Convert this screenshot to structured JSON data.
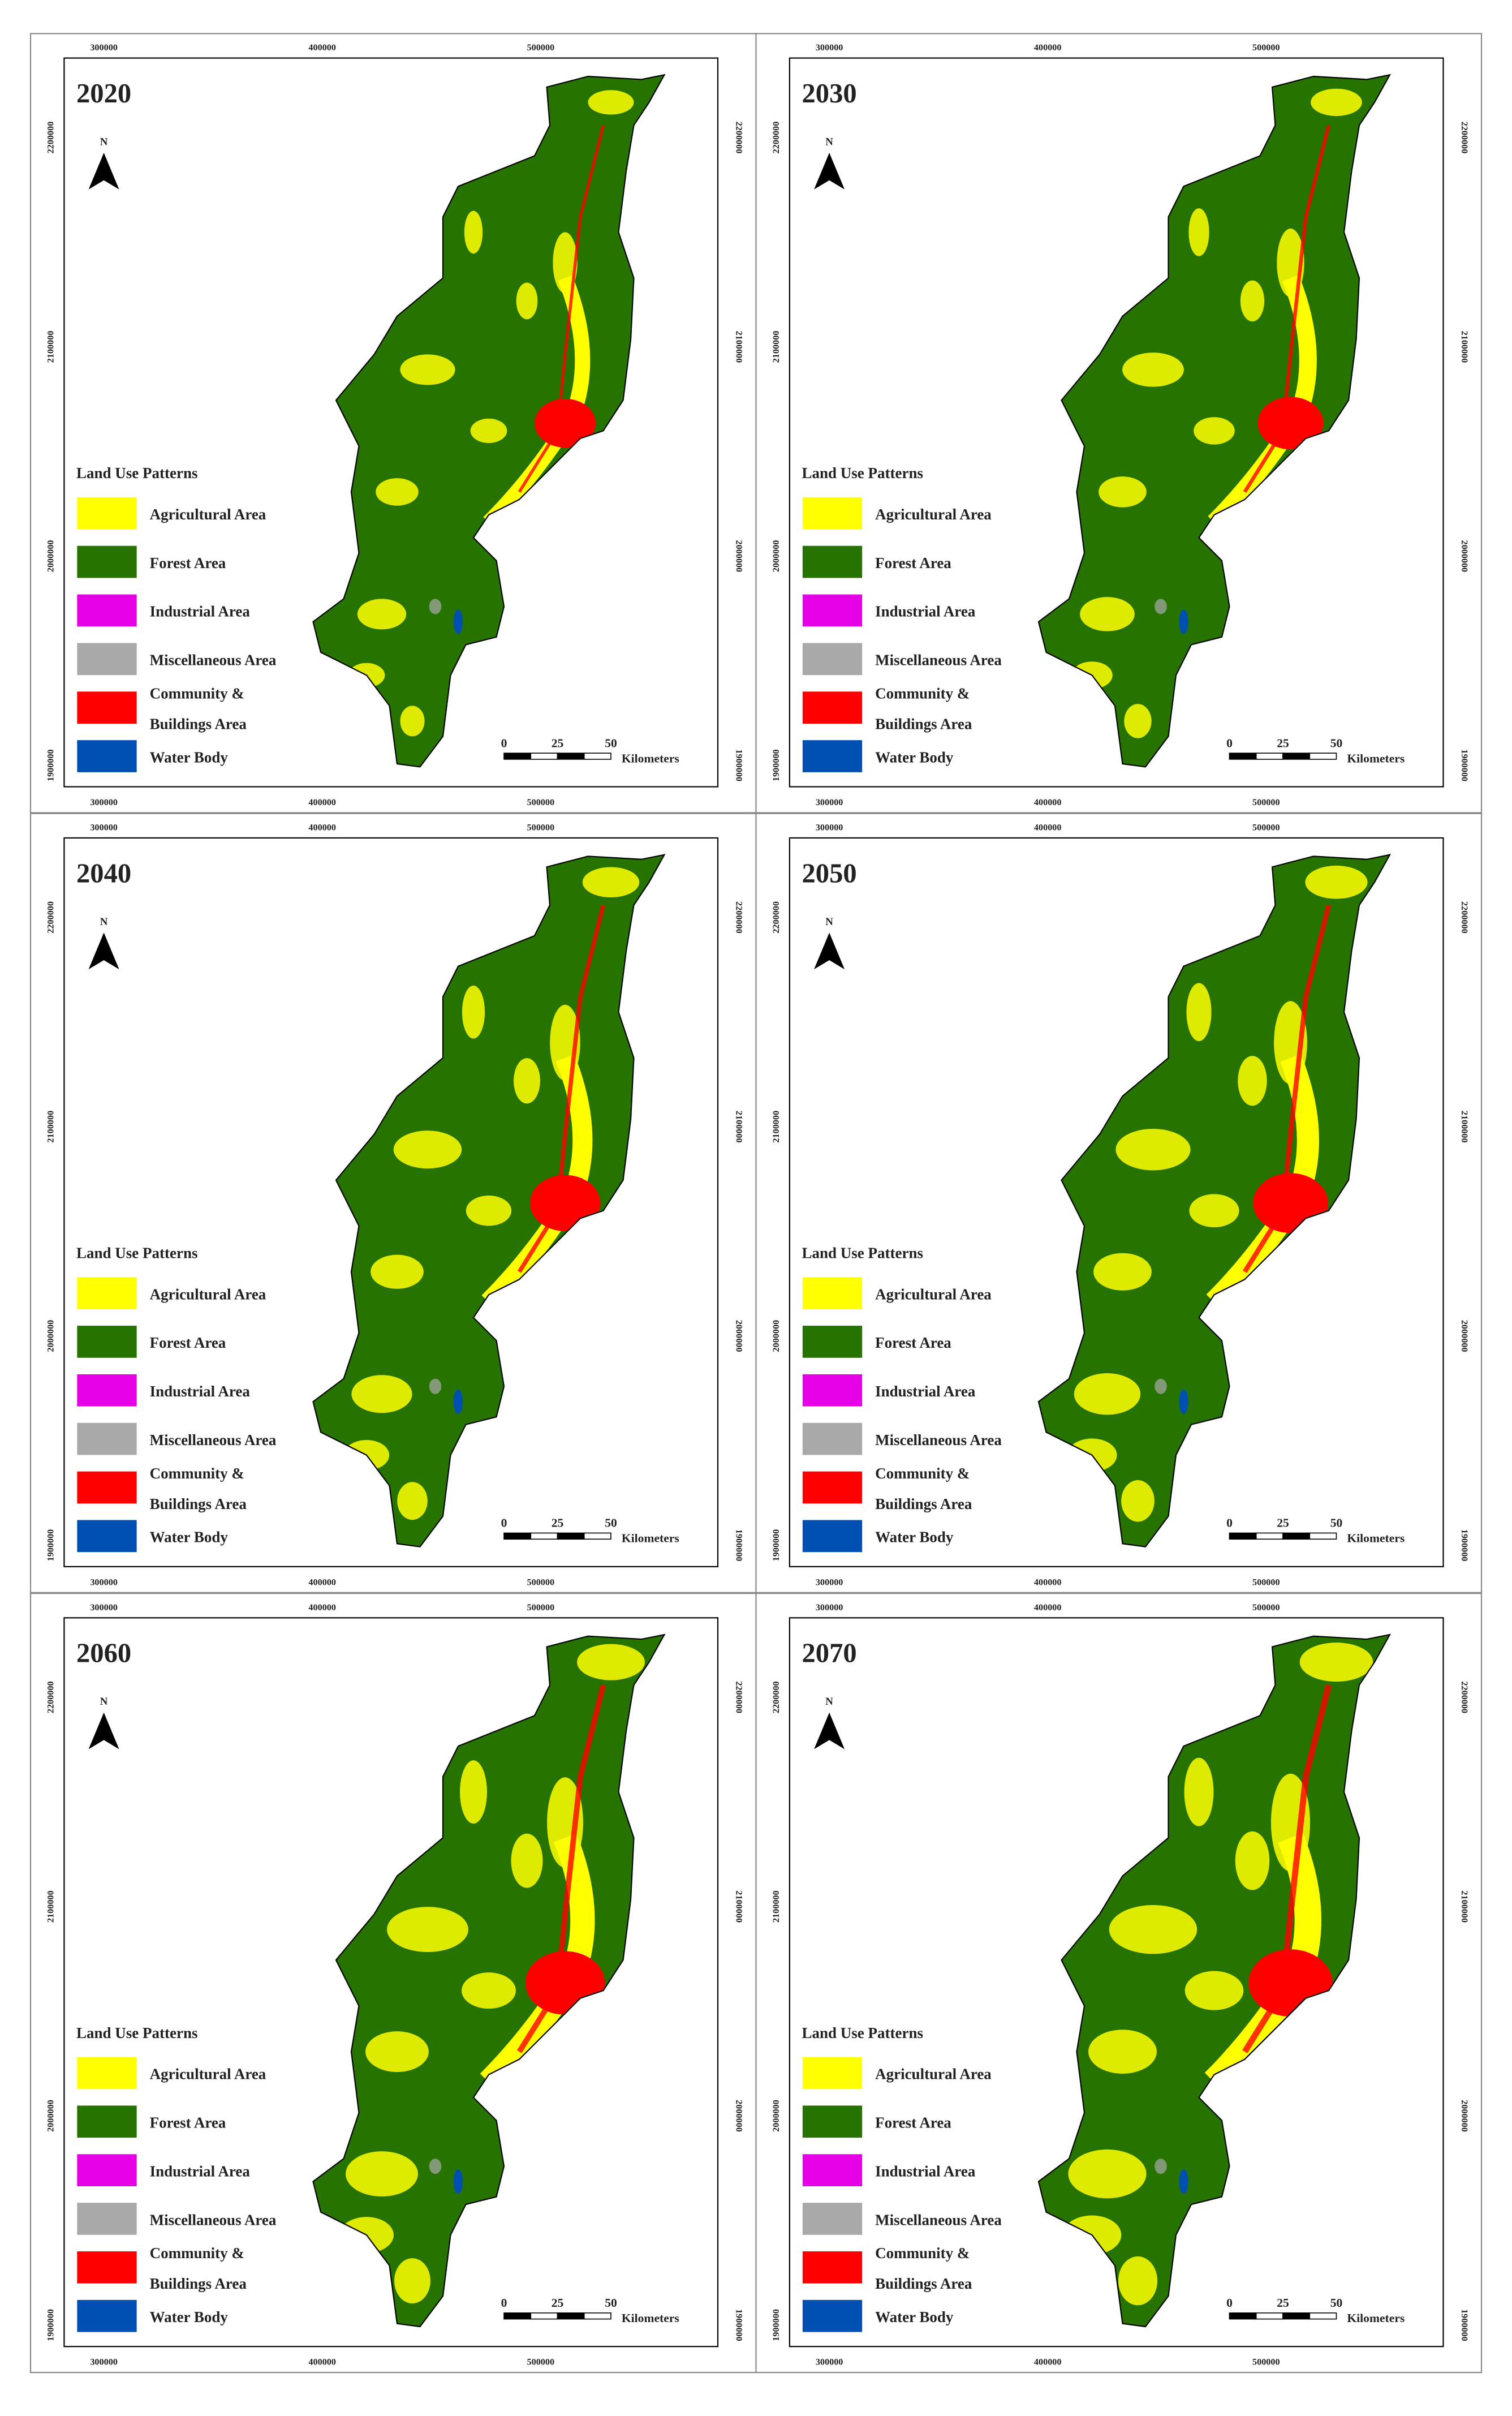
{
  "panels": [
    {
      "year": "2020"
    },
    {
      "year": "2030"
    },
    {
      "year": "2040"
    },
    {
      "year": "2050"
    },
    {
      "year": "2060"
    },
    {
      "year": "2070"
    }
  ],
  "north": "N",
  "x_ticks": [
    "300000",
    "400000",
    "500000"
  ],
  "y_ticks": [
    "2200000",
    "2100000",
    "2000000",
    "1900000"
  ],
  "legend": {
    "title": "Land Use Patterns",
    "items": [
      {
        "lines": [
          "Agricultural Area"
        ],
        "color": "#ffff00"
      },
      {
        "lines": [
          "Forest Area"
        ],
        "color": "#267300"
      },
      {
        "lines": [
          "Industrial Area"
        ],
        "color": "#e600e6"
      },
      {
        "lines": [
          "Miscellaneous Area"
        ],
        "color": "#a9a9a9"
      },
      {
        "lines": [
          "Community &",
          "Buildings Area"
        ],
        "color": "#ff0000"
      },
      {
        "lines": [
          "Water Body"
        ],
        "color": "#0050b4"
      }
    ]
  },
  "scale_bar": {
    "labels": [
      "0",
      "25",
      "50"
    ],
    "unit": "Kilometers"
  }
}
